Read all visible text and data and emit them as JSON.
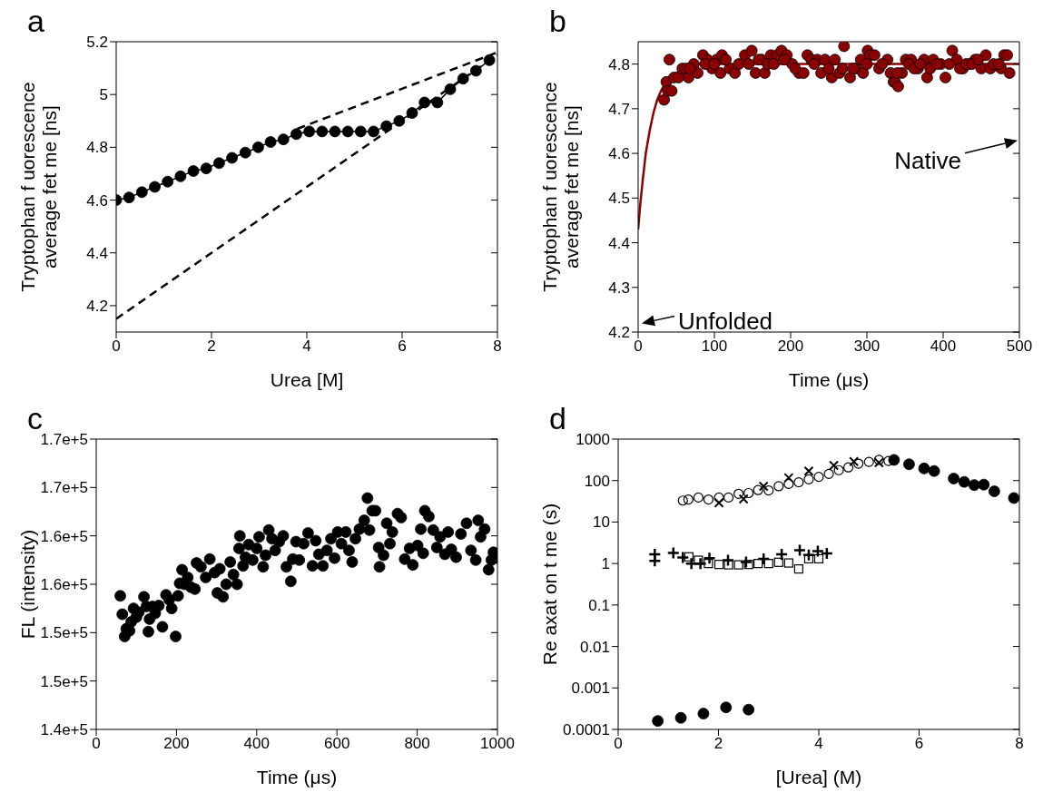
{
  "chart_data": [
    {
      "type": "line",
      "title": "a",
      "xlabel": "Urea [M]",
      "ylabel": "Tryptophan f uorescence\naverage fet me [ns]",
      "xlim": [
        0,
        8
      ],
      "xticks": [
        0,
        2,
        4,
        6,
        8
      ],
      "ylim": [
        4.1,
        5.2
      ],
      "yticks": [
        4.2,
        4.4,
        4.6,
        4.8,
        5.0,
        5.2
      ],
      "series": [
        {
          "color": "#000000",
          "marker": "circle",
          "x": [
            0,
            0.27,
            0.54,
            0.81,
            1.08,
            1.35,
            1.62,
            1.89,
            2.16,
            2.43,
            2.71,
            2.98,
            3.24,
            3.51,
            3.78,
            4.05,
            4.32,
            4.59,
            4.86,
            5.13,
            5.4,
            5.67,
            5.94,
            6.21,
            6.47,
            6.74,
            7.01,
            7.28,
            7.55,
            7.83
          ],
          "values": [
            4.6,
            4.61,
            4.63,
            4.65,
            4.67,
            4.69,
            4.71,
            4.72,
            4.74,
            4.76,
            4.78,
            4.8,
            4.82,
            4.83,
            4.85,
            4.86,
            4.86,
            4.86,
            4.86,
            4.86,
            4.86,
            4.88,
            4.9,
            4.93,
            4.97,
            4.97,
            5.02,
            5.06,
            5.09,
            5.13
          ]
        },
        {
          "color": "#000000",
          "marker": "none",
          "line_style": "dashed",
          "x": [
            3.8,
            8
          ],
          "values": [
            4.87,
            5.16
          ]
        },
        {
          "color": "#000000",
          "marker": "none",
          "line_style": "dashed",
          "x": [
            0,
            8
          ],
          "values": [
            4.15,
            5.15
          ]
        }
      ]
    },
    {
      "type": "scatter",
      "title": "b",
      "xlabel": "Time (μs)",
      "ylabel": "Tryptophan f uorescence\naverage fet me [ns]",
      "xlim": [
        0,
        500
      ],
      "xticks": [
        0,
        100,
        200,
        300,
        400,
        500
      ],
      "ylim": [
        4.2,
        4.85
      ],
      "yticks": [
        4.2,
        4.3,
        4.4,
        4.5,
        4.6,
        4.7,
        4.8
      ],
      "annotations": [
        "Unfolded",
        "Native"
      ],
      "series": [
        {
          "color": "#8b0000",
          "marker": "circle",
          "x": [
            34,
            37,
            39,
            41,
            44,
            47,
            53,
            58,
            63,
            66,
            73,
            78,
            85,
            91,
            97,
            103,
            108,
            110,
            120,
            127,
            140,
            149,
            154,
            162,
            166,
            174,
            182,
            188,
            195,
            202,
            211,
            217,
            222,
            227,
            235,
            240,
            245,
            254,
            258,
            264,
            270,
            278,
            286,
            292,
            295,
            301,
            304,
            310,
            316,
            327,
            331,
            335,
            337,
            341,
            346,
            351,
            358,
            367,
            375,
            379,
            387,
            397,
            403,
            412,
            418,
            426,
            434,
            442,
            450,
            456,
            462,
            476,
            480,
            484,
            487,
            68,
            88,
            100,
            115,
            132,
            145,
            158,
            170,
            178,
            192,
            206,
            231,
            250,
            268,
            282,
            300,
            320,
            340,
            355,
            362,
            370,
            383,
            392,
            408,
            422,
            430,
            438,
            446,
            466,
            473
          ],
          "values": [
            4.72,
            4.76,
            4.74,
            4.81,
            4.74,
            4.77,
            4.77,
            4.79,
            4.79,
            4.77,
            4.8,
            4.78,
            4.82,
            4.81,
            4.79,
            4.81,
            4.78,
            4.82,
            4.79,
            4.78,
            4.82,
            4.83,
            4.78,
            4.81,
            4.78,
            4.82,
            4.82,
            4.83,
            4.82,
            4.8,
            4.78,
            4.78,
            4.82,
            4.81,
            4.81,
            4.78,
            4.81,
            4.77,
            4.81,
            4.78,
            4.84,
            4.77,
            4.79,
            4.81,
            4.78,
            4.83,
            4.82,
            4.82,
            4.79,
            4.81,
            4.78,
            4.76,
            4.76,
            4.75,
            4.78,
            4.81,
            4.81,
            4.79,
            4.81,
            4.77,
            4.81,
            4.8,
            4.77,
            4.83,
            4.81,
            4.79,
            4.8,
            4.81,
            4.79,
            4.82,
            4.79,
            4.79,
            4.82,
            4.82,
            4.78,
            4.79,
            4.8,
            4.8,
            4.81,
            4.8,
            4.8,
            4.81,
            4.8,
            4.8,
            4.81,
            4.79,
            4.8,
            4.79,
            4.79,
            4.79,
            4.8,
            4.8,
            4.78,
            4.8,
            4.79,
            4.8,
            4.79,
            4.8,
            4.8,
            4.79,
            4.8,
            4.8,
            4.81,
            4.8,
            4.8
          ]
        },
        {
          "type": "line",
          "color": "#8b0000",
          "marker": "none",
          "x": [
            0,
            3,
            6,
            10,
            15,
            20,
            25,
            30,
            40,
            50,
            60,
            80,
            500
          ],
          "values": [
            4.43,
            4.49,
            4.54,
            4.6,
            4.65,
            4.69,
            4.72,
            4.74,
            4.77,
            4.78,
            4.79,
            4.8,
            4.8
          ]
        }
      ]
    },
    {
      "type": "scatter",
      "title": "c",
      "xlabel": "Time (μs)",
      "ylabel": "FL (intensity)",
      "xlim": [
        0,
        1000
      ],
      "xticks": [
        0,
        200,
        400,
        600,
        800,
        1000
      ],
      "ylim": [
        140000,
        170000
      ],
      "yticks": [
        {
          "value": 140000,
          "label": "1.4e+5"
        },
        {
          "value": 145000,
          "label": "1.5e+5"
        },
        {
          "value": 150000,
          "label": "1.5e+5"
        },
        {
          "value": 155000,
          "label": "1.6e+5"
        },
        {
          "value": 160000,
          "label": "1.6e+5"
        },
        {
          "value": 165000,
          "label": "1.7e+5"
        },
        {
          "value": 170000,
          "label": "1.7e+5"
        }
      ],
      "series": [
        {
          "color": "#000000",
          "marker": "circle",
          "x": [
            60,
            65,
            71,
            75,
            83,
            87,
            93,
            100,
            106,
            119,
            125,
            130,
            133,
            140,
            147,
            156,
            165,
            174,
            182,
            188,
            198,
            204,
            208,
            214,
            220,
            228,
            236,
            246,
            250,
            261,
            273,
            283,
            295,
            302,
            308,
            316,
            324,
            334,
            342,
            351,
            356,
            358,
            366,
            372,
            380,
            390,
            400,
            406,
            416,
            422,
            430,
            438,
            446,
            456,
            466,
            474,
            485,
            490,
            498,
            506,
            517,
            528,
            539,
            547,
            555,
            565,
            575,
            585,
            594,
            602,
            611,
            622,
            630,
            638,
            646,
            656,
            668,
            676,
            681,
            688,
            696,
            704,
            706,
            716,
            724,
            732,
            738,
            751,
            760,
            769,
            781,
            789,
            801,
            809,
            815,
            819,
            829,
            840,
            849,
            857,
            869,
            877,
            885,
            897,
            909,
            923,
            934,
            946,
            952,
            958,
            968,
            978,
            985,
            990,
            1000
          ],
          "values": [
            153800,
            151900,
            149600,
            150400,
            150200,
            151100,
            152500,
            151600,
            152100,
            153700,
            152700,
            150100,
            151400,
            152700,
            152000,
            152800,
            150600,
            153900,
            153400,
            152500,
            149600,
            153800,
            155100,
            156500,
            155000,
            155700,
            154700,
            154500,
            157200,
            156800,
            155700,
            157600,
            156200,
            154100,
            156600,
            153700,
            155000,
            157300,
            156000,
            155000,
            158700,
            160000,
            156900,
            157800,
            159100,
            157500,
            158700,
            159900,
            156800,
            158000,
            160600,
            159700,
            158500,
            159400,
            160000,
            156800,
            155300,
            157600,
            159400,
            157500,
            159200,
            160300,
            156900,
            159500,
            158100,
            156900,
            158500,
            159700,
            157700,
            160400,
            159200,
            160400,
            158500,
            157300,
            159700,
            160700,
            161600,
            163900,
            160600,
            162600,
            162600,
            158800,
            156800,
            158000,
            161300,
            159200,
            160400,
            162300,
            161900,
            157600,
            158700,
            157000,
            159000,
            160700,
            158200,
            162600,
            162000,
            160600,
            158800,
            159900,
            158100,
            160400,
            158600,
            157800,
            160200,
            161300,
            158500,
            157500,
            161600,
            159900,
            160700,
            156500,
            157500,
            158300,
            157700
          ]
        }
      ]
    },
    {
      "type": "scatter",
      "title": "d",
      "xlabel": "[Urea] (M)",
      "ylabel": "Re axat on t me (s)",
      "log": "y",
      "xlim": [
        0,
        8
      ],
      "xticks": [
        0,
        2,
        4,
        6,
        8
      ],
      "ylim": [
        0.0001,
        1000
      ],
      "yticks": [
        0.0001,
        0.001,
        0.01,
        0.1,
        1,
        10,
        100,
        1000
      ],
      "series": [
        {
          "color": "#000000",
          "marker": "circle-open",
          "x": [
            1.29,
            1.4,
            1.6,
            1.8,
            2.01,
            2.2,
            2.4,
            2.6,
            2.79,
            3.0,
            3.2,
            3.4,
            3.6,
            3.8,
            4.0,
            4.2,
            4.4,
            4.59,
            4.79,
            5.0,
            5.2,
            5.39
          ],
          "values": [
            33,
            35,
            39,
            35,
            39,
            39,
            48,
            50,
            59,
            58,
            73,
            83,
            91,
            107,
            123,
            145,
            178,
            208,
            256,
            282,
            315,
            297
          ]
        },
        {
          "color": "#000000",
          "marker": "cross",
          "x": [
            2.01,
            2.5,
            2.9,
            3.4,
            3.8,
            4.3,
            4.7,
            5.2
          ],
          "values": [
            29,
            36,
            73,
            117,
            170,
            232,
            287,
            270
          ]
        },
        {
          "color": "#000000",
          "marker": "circle",
          "x": [
            5.5,
            5.8,
            6.1,
            6.3,
            6.69,
            6.9,
            7.1,
            7.29,
            7.5,
            7.89,
            0.79,
            1.25,
            1.7,
            2.15,
            2.6
          ],
          "values": [
            315,
            247,
            196,
            170,
            112,
            93,
            78,
            80,
            55,
            38,
            0.00016,
            0.00019,
            0.00024,
            0.00034,
            0.0003
          ]
        },
        {
          "color": "#000000",
          "marker": "plus",
          "x": [
            0.73,
            0.73,
            1.1,
            1.29,
            1.46,
            1.64,
            1.82,
            2.19,
            2.55,
            2.9,
            3.26,
            3.62,
            3.8,
            3.98,
            4.16
          ],
          "values": [
            1.66,
            1.15,
            1.8,
            1.4,
            1.0,
            1.0,
            1.35,
            1.2,
            1.08,
            1.3,
            1.66,
            2.1,
            1.6,
            2.0,
            1.75
          ]
        },
        {
          "color": "#000000",
          "marker": "square-open",
          "x": [
            1.41,
            1.6,
            1.8,
            2.01,
            2.2,
            2.4,
            2.6,
            2.79,
            3.0,
            3.2,
            3.4,
            3.6,
            3.8,
            4.0
          ],
          "values": [
            1.45,
            1.2,
            1.0,
            0.95,
            0.93,
            0.93,
            0.95,
            1.0,
            1.0,
            1.07,
            1.03,
            0.74,
            1.3,
            1.3
          ]
        }
      ]
    }
  ]
}
